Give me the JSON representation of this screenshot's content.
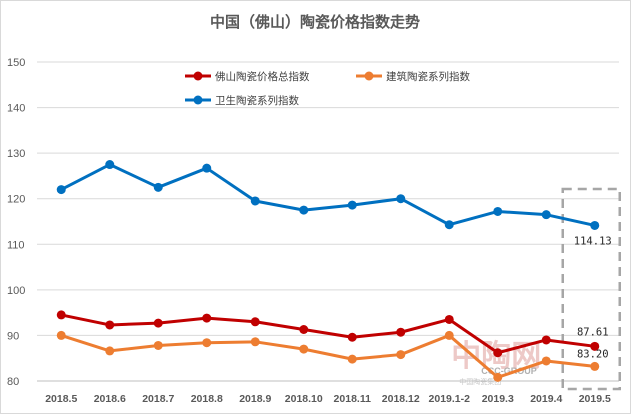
{
  "chart_data": {
    "type": "line",
    "title": "中国（佛山）陶瓷价格指数走势",
    "xlabel": "",
    "ylabel": "",
    "categories": [
      "2018.5",
      "2018.6",
      "2018.7",
      "2018.8",
      "2018.9",
      "2018.10",
      "2018.11",
      "2018.12",
      "2019.1-2",
      "2019.3",
      "2019.4",
      "2019.5"
    ],
    "ylim": [
      80,
      150
    ],
    "yticks": [
      80,
      90,
      100,
      110,
      120,
      130,
      140,
      150
    ],
    "grid": true,
    "legend_position": "top",
    "series": [
      {
        "name": "佛山陶瓷价格总指数",
        "color": "#c00000",
        "values": [
          94.5,
          92.3,
          92.7,
          93.8,
          93.0,
          91.3,
          89.6,
          90.7,
          93.5,
          86.2,
          89.0,
          87.61
        ]
      },
      {
        "name": "建筑陶瓷系列指数",
        "color": "#ed7d31",
        "values": [
          90.0,
          86.6,
          87.8,
          88.4,
          88.6,
          87.0,
          84.8,
          85.8,
          90.0,
          80.8,
          84.4,
          83.2
        ]
      },
      {
        "name": "卫生陶瓷系列指数",
        "color": "#0070c0",
        "values": [
          122.0,
          127.5,
          122.5,
          126.7,
          119.5,
          117.5,
          118.6,
          120.0,
          114.3,
          117.2,
          116.5,
          114.13
        ]
      }
    ],
    "annotations": [
      {
        "series": 0,
        "index": 11,
        "text": "87.61"
      },
      {
        "series": 1,
        "index": 11,
        "text": "83.20"
      },
      {
        "series": 2,
        "index": 11,
        "text": "114.13"
      }
    ],
    "highlight_category": "2019.5",
    "watermark": {
      "main": "中陶网",
      "sub": "CCC-GROUP",
      "small": "中国陶瓷集团"
    }
  }
}
